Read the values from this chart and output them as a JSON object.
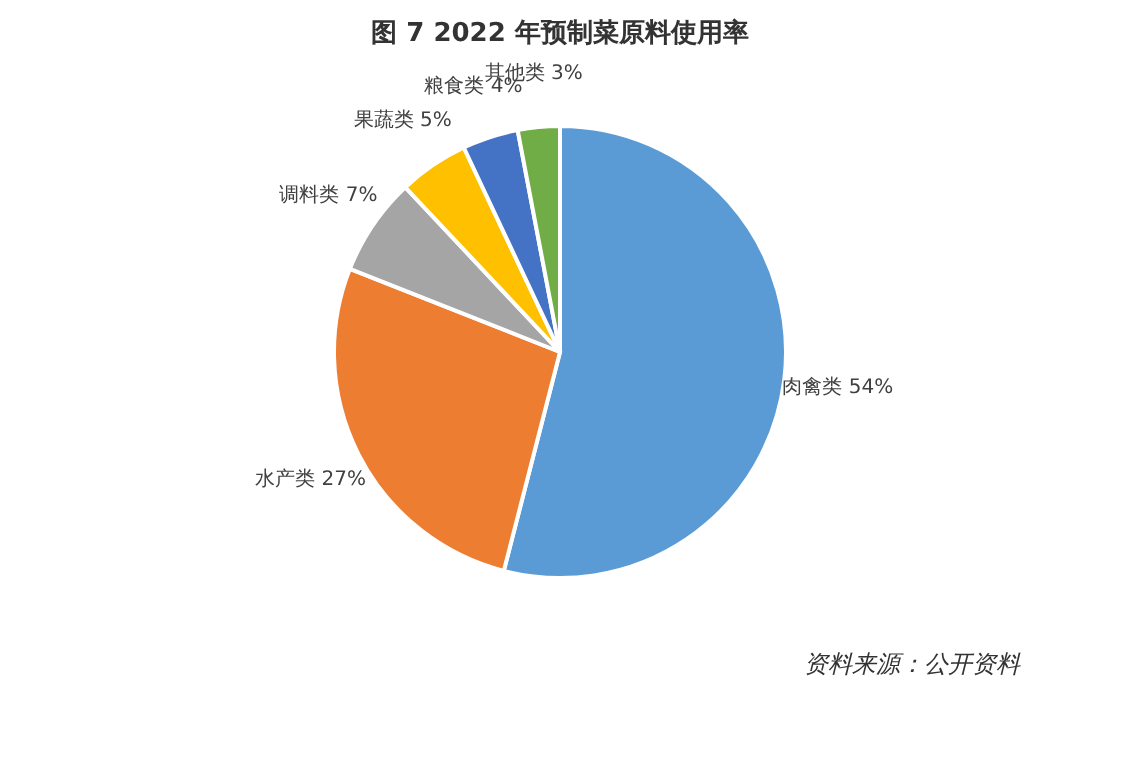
{
  "chart_data": {
    "type": "pie",
    "title": "图 7 2022 年预制菜原料使用率",
    "categories": [
      "肉禽类",
      "水产类",
      "调料类",
      "果蔬类",
      "粮食类",
      "其他类"
    ],
    "values": [
      54,
      27,
      7,
      5,
      4,
      3
    ],
    "value_labels": [
      "54%",
      "27%",
      "7%",
      "5%",
      "4%",
      "3%"
    ],
    "colors": [
      "#5b9bd5",
      "#ed7d31",
      "#a5a5a5",
      "#ffc000",
      "#4472c4",
      "#70ad47"
    ],
    "legend": false,
    "annotations": [
      "资料来源：公开资料"
    ]
  }
}
